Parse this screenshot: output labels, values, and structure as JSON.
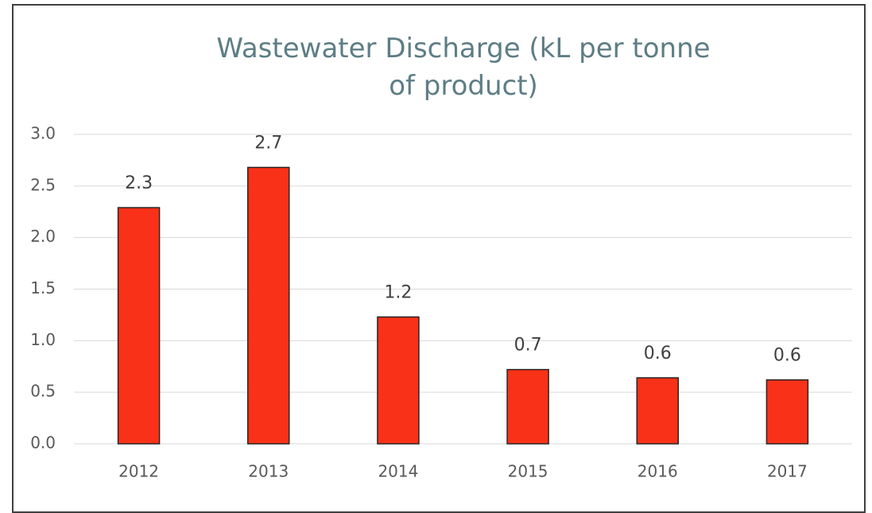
{
  "chart_data": {
    "type": "bar",
    "title": "Wastewater Discharge (kL per tonne of product)",
    "categories": [
      "2012",
      "2013",
      "2014",
      "2015",
      "2016",
      "2017"
    ],
    "values": [
      2.29,
      2.68,
      1.23,
      0.72,
      0.64,
      0.62
    ],
    "value_labels": [
      "2.3",
      "2.7",
      "1.2",
      "0.7",
      "0.6",
      "0.6"
    ],
    "color": "#f93118",
    "ylim": [
      0,
      3
    ],
    "yticks": [
      {
        "value": 0,
        "label": "0.0"
      },
      {
        "value": 0.5,
        "label": "0.5"
      },
      {
        "value": 1,
        "label": "1.0"
      },
      {
        "value": 1.5,
        "label": "1.5"
      },
      {
        "value": 2,
        "label": "2.0"
      },
      {
        "value": 2.5,
        "label": "2.5"
      },
      {
        "value": 3,
        "label": "3.0"
      }
    ],
    "grid": true
  }
}
